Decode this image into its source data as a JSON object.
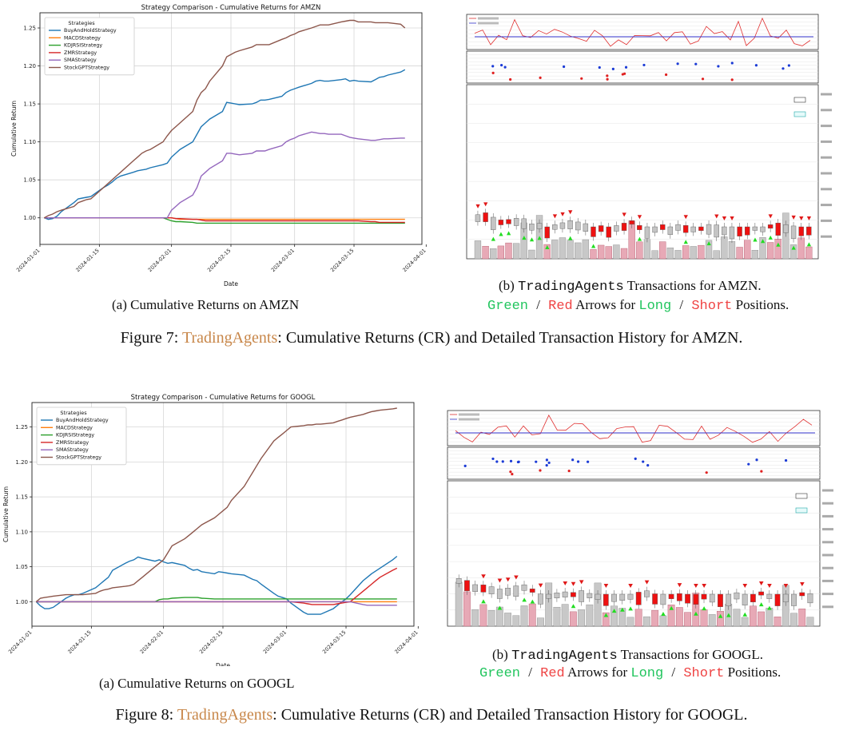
{
  "figure7": {
    "caption_label": "Figure 7:",
    "caption_brand": "TradingAgents",
    "caption_rest": ": Cumulative Returns (CR) and Detailed Transaction History for AMZN.",
    "sub_a": "(a) Cumulative Returns on AMZN",
    "sub_b_prefix": "(b) ",
    "sub_b_mono": "TradingAgents",
    "sub_b_rest": " Transactions for AMZN.",
    "arrows_green": "Green",
    "arrows_slash": "/",
    "arrows_red": "Red",
    "arrows_mid": " Arrows for ",
    "arrows_long": "Long",
    "arrows_short": "Short",
    "arrows_end": " Positions."
  },
  "figure8": {
    "caption_label": "Figure 8:",
    "caption_brand": "TradingAgents",
    "caption_rest": ": Cumulative Returns (CR) and Detailed Transaction History for GOOGL.",
    "sub_a": "(a) Cumulative Returns on GOOGL",
    "sub_b_prefix": "(b) ",
    "sub_b_mono": "TradingAgents",
    "sub_b_rest": " Transactions for GOOGL.",
    "arrows_green": "Green",
    "arrows_slash": "/",
    "arrows_red": "Red",
    "arrows_mid": " Arrows for ",
    "arrows_long": "Long",
    "arrows_short": "Short",
    "arrows_end": " Positions."
  },
  "chart_data": [
    {
      "id": "amzn",
      "type": "line",
      "title": "Strategy Comparison - Cumulative Returns for AMZN",
      "xlabel": "Date",
      "ylabel": "Cumulative Return",
      "legend_title": "Strategies",
      "grid": true,
      "legend_position": "top-left",
      "xlim": [
        0,
        90
      ],
      "ylim": [
        0.965,
        1.27
      ],
      "x_ticks": [
        0,
        14,
        31,
        45,
        60,
        74,
        91
      ],
      "x_tick_labels": [
        "2024-01-01",
        "2024-01-15",
        "2024-02-01",
        "2024-02-15",
        "2024-03-01",
        "2024-03-15",
        "2024-04-01"
      ],
      "y_ticks": [
        1.0,
        1.05,
        1.1,
        1.15,
        1.2,
        1.25
      ],
      "y_tick_labels": [
        "1.00",
        "1.05",
        "1.10",
        "1.15",
        "1.20",
        "1.25"
      ],
      "x": [
        1,
        2,
        3,
        4,
        5,
        8,
        9,
        10,
        11,
        12,
        15,
        16,
        17,
        18,
        19,
        22,
        23,
        24,
        25,
        26,
        29,
        30,
        31,
        32,
        33,
        36,
        37,
        38,
        39,
        40,
        43,
        44,
        45,
        46,
        47,
        50,
        51,
        52,
        53,
        54,
        57,
        58,
        59,
        60,
        61,
        64,
        65,
        66,
        67,
        68,
        71,
        72,
        73,
        74,
        75,
        78,
        79,
        80,
        81,
        82,
        85,
        86
      ],
      "series": [
        {
          "name": "BuyAndHoldStrategy",
          "color": "#1f77b4",
          "values": [
            1.0,
            0.998,
            0.999,
            1.002,
            1.008,
            1.02,
            1.025,
            1.026,
            1.027,
            1.028,
            1.04,
            1.043,
            1.047,
            1.052,
            1.055,
            1.06,
            1.062,
            1.063,
            1.064,
            1.066,
            1.07,
            1.072,
            1.08,
            1.085,
            1.09,
            1.1,
            1.11,
            1.12,
            1.125,
            1.13,
            1.14,
            1.152,
            1.151,
            1.15,
            1.149,
            1.15,
            1.152,
            1.155,
            1.155,
            1.156,
            1.16,
            1.165,
            1.168,
            1.17,
            1.172,
            1.177,
            1.18,
            1.181,
            1.18,
            1.18,
            1.182,
            1.183,
            1.18,
            1.181,
            1.18,
            1.179,
            1.182,
            1.185,
            1.186,
            1.188,
            1.192,
            1.195
          ]
        },
        {
          "name": "MACDStrategy",
          "color": "#ff7f0e",
          "values": [
            1.0,
            1.0,
            1.0,
            1.0,
            1.0,
            1.0,
            1.0,
            1.0,
            1.0,
            1.0,
            1.0,
            1.0,
            1.0,
            1.0,
            1.0,
            1.0,
            1.0,
            1.0,
            1.0,
            1.0,
            1.0,
            1.0,
            1.0,
            0.999,
            0.998,
            0.998,
            0.998,
            0.998,
            0.998,
            0.998,
            0.998,
            0.998,
            0.998,
            0.998,
            0.998,
            0.998,
            0.998,
            0.998,
            0.998,
            0.998,
            0.998,
            0.998,
            0.998,
            0.998,
            0.998,
            0.998,
            0.998,
            0.998,
            0.998,
            0.998,
            0.998,
            0.998,
            0.998,
            0.998,
            0.998,
            0.998,
            0.998,
            0.998,
            0.998,
            0.998,
            0.998,
            0.998
          ]
        },
        {
          "name": "KDJRSIStrategy",
          "color": "#2ca02c",
          "values": [
            1.0,
            1.0,
            1.0,
            1.0,
            1.0,
            1.0,
            1.0,
            1.0,
            1.0,
            1.0,
            1.0,
            1.0,
            1.0,
            1.0,
            1.0,
            1.0,
            1.0,
            1.0,
            1.0,
            1.0,
            1.0,
            0.998,
            0.996,
            0.995,
            0.995,
            0.994,
            0.993,
            0.993,
            0.993,
            0.993,
            0.993,
            0.993,
            0.993,
            0.993,
            0.993,
            0.993,
            0.993,
            0.993,
            0.993,
            0.993,
            0.993,
            0.993,
            0.993,
            0.993,
            0.993,
            0.993,
            0.993,
            0.993,
            0.993,
            0.993,
            0.993,
            0.993,
            0.993,
            0.993,
            0.993,
            0.993,
            0.993,
            0.993,
            0.993,
            0.993,
            0.993,
            0.993
          ]
        },
        {
          "name": "ZMRStrategy",
          "color": "#d62728",
          "values": [
            1.0,
            1.0,
            1.0,
            1.0,
            1.0,
            1.0,
            1.0,
            1.0,
            1.0,
            1.0,
            1.0,
            1.0,
            1.0,
            1.0,
            1.0,
            1.0,
            1.0,
            1.0,
            1.0,
            1.0,
            1.0,
            1.0,
            1.0,
            0.999,
            0.999,
            0.998,
            0.998,
            0.997,
            0.996,
            0.996,
            0.996,
            0.996,
            0.996,
            0.996,
            0.996,
            0.996,
            0.996,
            0.996,
            0.996,
            0.996,
            0.996,
            0.996,
            0.996,
            0.996,
            0.996,
            0.996,
            0.996,
            0.996,
            0.996,
            0.996,
            0.996,
            0.996,
            0.996,
            0.996,
            0.996,
            0.995,
            0.995,
            0.994,
            0.994,
            0.994,
            0.994,
            0.994
          ]
        },
        {
          "name": "SMAStrategy",
          "color": "#9467bd",
          "values": [
            1.0,
            1.0,
            1.0,
            1.0,
            1.0,
            1.0,
            1.0,
            1.0,
            1.0,
            1.0,
            1.0,
            1.0,
            1.0,
            1.0,
            1.0,
            1.0,
            1.0,
            1.0,
            1.0,
            1.0,
            1.0,
            1.0,
            1.01,
            1.015,
            1.02,
            1.03,
            1.04,
            1.055,
            1.06,
            1.065,
            1.075,
            1.085,
            1.085,
            1.084,
            1.083,
            1.085,
            1.088,
            1.088,
            1.088,
            1.09,
            1.095,
            1.1,
            1.103,
            1.105,
            1.108,
            1.113,
            1.112,
            1.111,
            1.111,
            1.11,
            1.11,
            1.108,
            1.106,
            1.105,
            1.104,
            1.102,
            1.102,
            1.103,
            1.104,
            1.104,
            1.105,
            1.105
          ]
        },
        {
          "name": "StockGPTStrategy",
          "color": "#8c564b",
          "values": [
            1.0,
            1.003,
            1.005,
            1.008,
            1.01,
            1.015,
            1.02,
            1.022,
            1.024,
            1.025,
            1.04,
            1.045,
            1.05,
            1.055,
            1.06,
            1.075,
            1.08,
            1.085,
            1.088,
            1.09,
            1.1,
            1.108,
            1.115,
            1.12,
            1.125,
            1.14,
            1.155,
            1.165,
            1.17,
            1.18,
            1.2,
            1.212,
            1.215,
            1.218,
            1.22,
            1.225,
            1.228,
            1.228,
            1.228,
            1.228,
            1.235,
            1.237,
            1.24,
            1.242,
            1.245,
            1.25,
            1.252,
            1.254,
            1.254,
            1.254,
            1.258,
            1.259,
            1.26,
            1.26,
            1.258,
            1.258,
            1.257,
            1.257,
            1.257,
            1.257,
            1.255,
            1.25
          ]
        }
      ]
    },
    {
      "id": "googl",
      "type": "line",
      "title": "Strategy Comparison - Cumulative Returns for GOOGL",
      "xlabel": "Date",
      "ylabel": "Cumulative Return",
      "legend_title": "Strategies",
      "grid": true,
      "legend_position": "top-left",
      "xlim": [
        0,
        90
      ],
      "ylim": [
        0.965,
        1.285
      ],
      "x_ticks": [
        0,
        14,
        31,
        45,
        60,
        74,
        91
      ],
      "x_tick_labels": [
        "2024-01-01",
        "2024-01-15",
        "2024-02-01",
        "2024-02-15",
        "2024-03-01",
        "2024-03-15",
        "2024-04-01"
      ],
      "y_ticks": [
        1.0,
        1.05,
        1.1,
        1.15,
        1.2,
        1.25
      ],
      "y_tick_labels": [
        "1.00",
        "1.05",
        "1.10",
        "1.15",
        "1.20",
        "1.25"
      ],
      "x": [
        1,
        2,
        3,
        4,
        5,
        8,
        9,
        10,
        11,
        12,
        15,
        16,
        17,
        18,
        19,
        22,
        23,
        24,
        25,
        26,
        29,
        30,
        31,
        32,
        33,
        36,
        37,
        38,
        39,
        40,
        43,
        44,
        45,
        46,
        47,
        50,
        51,
        52,
        53,
        54,
        57,
        58,
        59,
        60,
        61,
        64,
        65,
        66,
        67,
        68,
        71,
        72,
        73,
        74,
        75,
        78,
        79,
        80,
        81,
        82,
        85,
        86
      ],
      "series": [
        {
          "name": "BuyAndHoldStrategy",
          "color": "#1f77b4",
          "values": [
            1.0,
            0.994,
            0.99,
            0.99,
            0.992,
            1.005,
            1.008,
            1.01,
            1.01,
            1.012,
            1.02,
            1.025,
            1.03,
            1.035,
            1.045,
            1.055,
            1.058,
            1.06,
            1.064,
            1.062,
            1.058,
            1.06,
            1.057,
            1.055,
            1.056,
            1.052,
            1.048,
            1.045,
            1.046,
            1.043,
            1.04,
            1.043,
            1.042,
            1.041,
            1.04,
            1.038,
            1.035,
            1.032,
            1.03,
            1.025,
            1.012,
            1.008,
            1.006,
            1.004,
            0.998,
            0.985,
            0.982,
            0.982,
            0.982,
            0.982,
            0.99,
            0.995,
            1.0,
            1.004,
            1.01,
            1.03,
            1.035,
            1.04,
            1.044,
            1.048,
            1.06,
            1.065
          ]
        },
        {
          "name": "MACDStrategy",
          "color": "#ff7f0e",
          "values": [
            1.0,
            1.0,
            1.0,
            1.0,
            1.0,
            1.0,
            1.0,
            1.0,
            1.0,
            1.0,
            1.0,
            1.0,
            1.0,
            1.0,
            1.0,
            1.0,
            1.0,
            1.0,
            1.0,
            1.0,
            1.0,
            1.0,
            1.0,
            1.0,
            1.0,
            1.0,
            1.0,
            1.0,
            1.0,
            1.0,
            1.0,
            1.0,
            1.0,
            1.0,
            1.0,
            1.0,
            1.0,
            1.0,
            1.0,
            1.0,
            1.0,
            1.0,
            1.0,
            1.0,
            1.0,
            1.0,
            1.0,
            1.0,
            1.0,
            1.0,
            1.0,
            1.0,
            1.0,
            1.0,
            1.0,
            1.0,
            1.0,
            1.0,
            1.0,
            1.0,
            1.0,
            1.0
          ]
        },
        {
          "name": "KDJRSIStrategy",
          "color": "#2ca02c",
          "values": [
            1.0,
            1.0,
            1.0,
            1.0,
            1.0,
            1.0,
            1.0,
            1.0,
            1.0,
            1.0,
            1.0,
            1.0,
            1.0,
            1.0,
            1.0,
            1.0,
            1.0,
            1.0,
            1.0,
            1.0,
            1.0,
            1.003,
            1.004,
            1.004,
            1.005,
            1.006,
            1.006,
            1.006,
            1.006,
            1.005,
            1.004,
            1.004,
            1.004,
            1.004,
            1.004,
            1.004,
            1.004,
            1.004,
            1.004,
            1.004,
            1.004,
            1.004,
            1.004,
            1.004,
            1.004,
            1.004,
            1.004,
            1.004,
            1.004,
            1.004,
            1.004,
            1.004,
            1.004,
            1.004,
            1.004,
            1.004,
            1.004,
            1.004,
            1.004,
            1.004,
            1.004,
            1.004
          ]
        },
        {
          "name": "ZMRStrategy",
          "color": "#d62728",
          "values": [
            1.0,
            1.0,
            1.0,
            1.0,
            1.0,
            1.0,
            1.0,
            1.0,
            1.0,
            1.0,
            1.0,
            1.0,
            1.0,
            1.0,
            1.0,
            1.0,
            1.0,
            1.0,
            1.0,
            1.0,
            1.0,
            1.0,
            1.0,
            1.0,
            1.0,
            1.0,
            1.0,
            1.0,
            1.0,
            1.0,
            1.0,
            1.0,
            1.0,
            1.0,
            1.0,
            1.0,
            1.0,
            1.0,
            1.0,
            1.0,
            1.0,
            1.0,
            1.0,
            1.0,
            1.0,
            0.998,
            0.997,
            0.996,
            0.996,
            0.996,
            0.996,
            0.997,
            0.998,
            0.999,
            1.0,
            1.015,
            1.02,
            1.025,
            1.03,
            1.035,
            1.045,
            1.048
          ]
        },
        {
          "name": "SMAStrategy",
          "color": "#9467bd",
          "values": [
            1.0,
            1.0,
            1.0,
            1.0,
            1.0,
            1.0,
            1.0,
            1.0,
            1.0,
            1.0,
            1.0,
            1.0,
            1.0,
            1.0,
            1.0,
            1.0,
            1.0,
            1.0,
            1.0,
            1.0,
            1.0,
            1.0,
            1.0,
            1.0,
            1.0,
            1.0,
            1.0,
            1.0,
            1.0,
            1.0,
            1.0,
            1.0,
            1.0,
            1.0,
            1.0,
            1.0,
            1.0,
            1.0,
            1.0,
            1.0,
            1.0,
            1.0,
            1.0,
            1.0,
            1.0,
            1.0,
            1.0,
            1.0,
            1.0,
            1.0,
            1.0,
            1.0,
            1.0,
            1.0,
            1.0,
            0.996,
            0.995,
            0.995,
            0.995,
            0.995,
            0.995,
            0.995
          ]
        },
        {
          "name": "StockGPTStrategy",
          "color": "#8c564b",
          "values": [
            1.0,
            1.005,
            1.006,
            1.007,
            1.008,
            1.01,
            1.01,
            1.01,
            1.01,
            1.01,
            1.012,
            1.015,
            1.017,
            1.018,
            1.02,
            1.022,
            1.023,
            1.025,
            1.03,
            1.035,
            1.05,
            1.055,
            1.06,
            1.07,
            1.08,
            1.09,
            1.095,
            1.1,
            1.105,
            1.11,
            1.12,
            1.125,
            1.13,
            1.135,
            1.145,
            1.165,
            1.175,
            1.185,
            1.195,
            1.205,
            1.23,
            1.235,
            1.24,
            1.245,
            1.25,
            1.252,
            1.253,
            1.253,
            1.254,
            1.254,
            1.256,
            1.258,
            1.26,
            1.262,
            1.264,
            1.268,
            1.27,
            1.272,
            1.273,
            1.274,
            1.276,
            1.277
          ]
        }
      ]
    }
  ]
}
